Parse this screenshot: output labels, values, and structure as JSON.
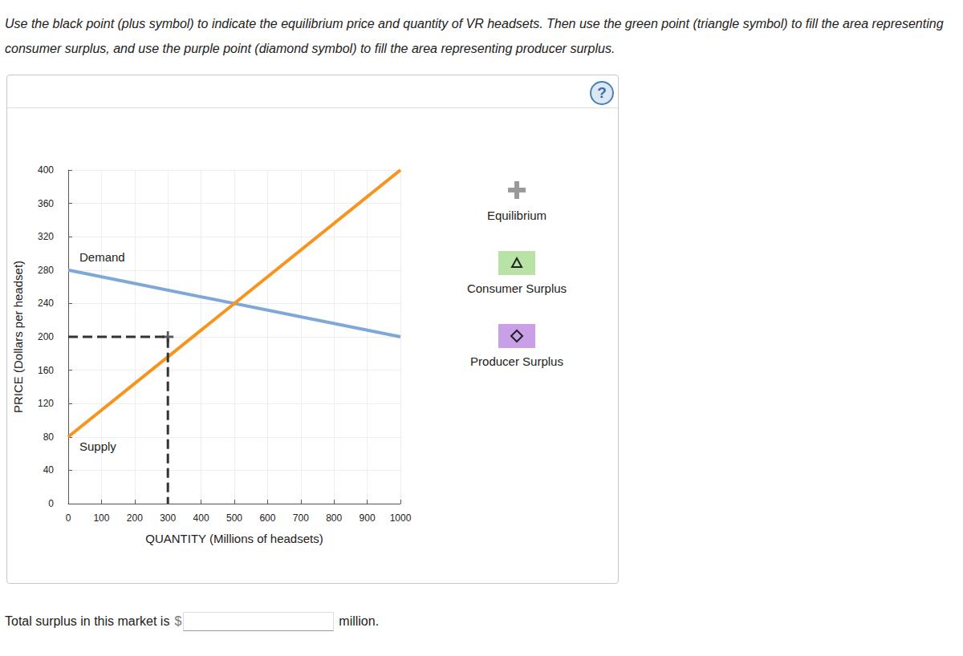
{
  "instructions": "Use the black point (plus symbol) to indicate the equilibrium price and quantity of VR headsets. Then use the green point (triangle symbol) to fill the area representing consumer surplus, and use the purple point (diamond symbol) to fill the area representing producer surplus.",
  "help": "?",
  "palette": [
    {
      "label": "Equilibrium",
      "marker": "plus",
      "color": "#9a9a9a"
    },
    {
      "label": "Consumer Surplus",
      "marker": "triangle",
      "color": "#b9e3a5"
    },
    {
      "label": "Producer Surplus",
      "marker": "diamond",
      "color": "#c9a0e8"
    }
  ],
  "answer": {
    "prefix": "Total surplus in this market is",
    "currency": "$",
    "suffix": "million."
  },
  "chart_data": {
    "type": "line",
    "xlabel": "QUANTITY (Millions of headsets)",
    "ylabel": "PRICE (Dollars per headset)",
    "xlim": [
      0,
      1000
    ],
    "xticks": [
      0,
      100,
      200,
      300,
      400,
      500,
      600,
      700,
      800,
      900,
      1000
    ],
    "ylim": [
      0,
      400
    ],
    "yticks": [
      0,
      40,
      80,
      120,
      160,
      200,
      240,
      280,
      320,
      360,
      400
    ],
    "grid": true,
    "series": [
      {
        "name": "Demand",
        "color": "#7fa8d6",
        "x": [
          0,
          1000
        ],
        "values": [
          280,
          200
        ]
      },
      {
        "name": "Supply",
        "color": "#f7941d",
        "x": [
          0,
          1000
        ],
        "values": [
          80,
          400
        ]
      }
    ],
    "guide_point": {
      "x": 300,
      "y": 200,
      "marker": "plus",
      "line_style": "dashed",
      "color": "#333333"
    }
  }
}
